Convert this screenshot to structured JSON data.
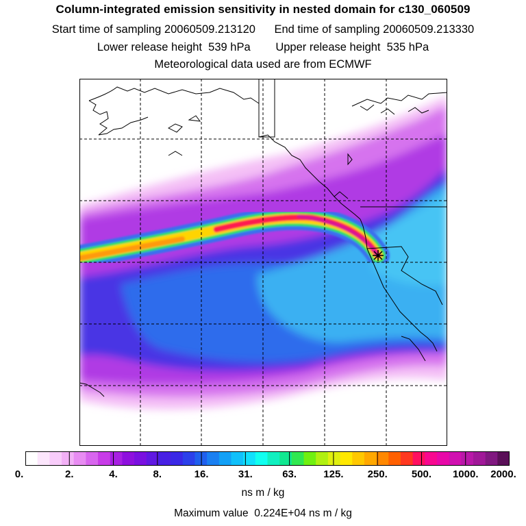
{
  "header": {
    "title": "Column-integrated emission sensitivity in nested domain for c130_060509",
    "line2": "Start time of sampling 20060509.213120      End time of sampling 20060509.213330",
    "line3": "Lower release height  539 hPa        Upper release height  535 hPa",
    "line4": "Meteorological data used are from ECMWF"
  },
  "colorbar": {
    "labels": [
      "0.",
      "2.",
      "4.",
      "8.",
      "16.",
      "31.",
      "63.",
      "125.",
      "250.",
      "500.",
      "1000.",
      "2000."
    ],
    "units": "ns m / kg",
    "colors": [
      "#ffffff",
      "#fce6fc",
      "#f8ccfa",
      "#f2b0f6",
      "#e88cf2",
      "#d866ee",
      "#c83ce8",
      "#a820e2",
      "#8e10de",
      "#7a10e0",
      "#6018e2",
      "#4820e4",
      "#3a28e6",
      "#2c40ea",
      "#2060ee",
      "#1a80f2",
      "#12a0f6",
      "#10c0fa",
      "#10e0fc",
      "#10fff0",
      "#10f0c0",
      "#10e890",
      "#30e850",
      "#70f010",
      "#b0f010",
      "#e0f010",
      "#ffe800",
      "#ffc800",
      "#ffa800",
      "#ff8800",
      "#ff6000",
      "#ff3820",
      "#ff1060",
      "#f80890",
      "#e808a8",
      "#d010b0",
      "#b818a8",
      "#a01898",
      "#801880",
      "#5a1058"
    ]
  },
  "footer": {
    "max_value": "Maximum value  0.224E+04 ns m / kg"
  },
  "map": {
    "marker": "release-point-star",
    "colors": {
      "light_pink": "#f4bff6",
      "magenta": "#c94ee8",
      "purple": "#9b22e0",
      "blue": "#3d3ee6",
      "med_blue": "#2a76ee",
      "light_blue": "#36b6f2",
      "plume_red": "#ff1a50",
      "plume_yellow": "#ffd400",
      "plume_green": "#2fe060"
    }
  }
}
